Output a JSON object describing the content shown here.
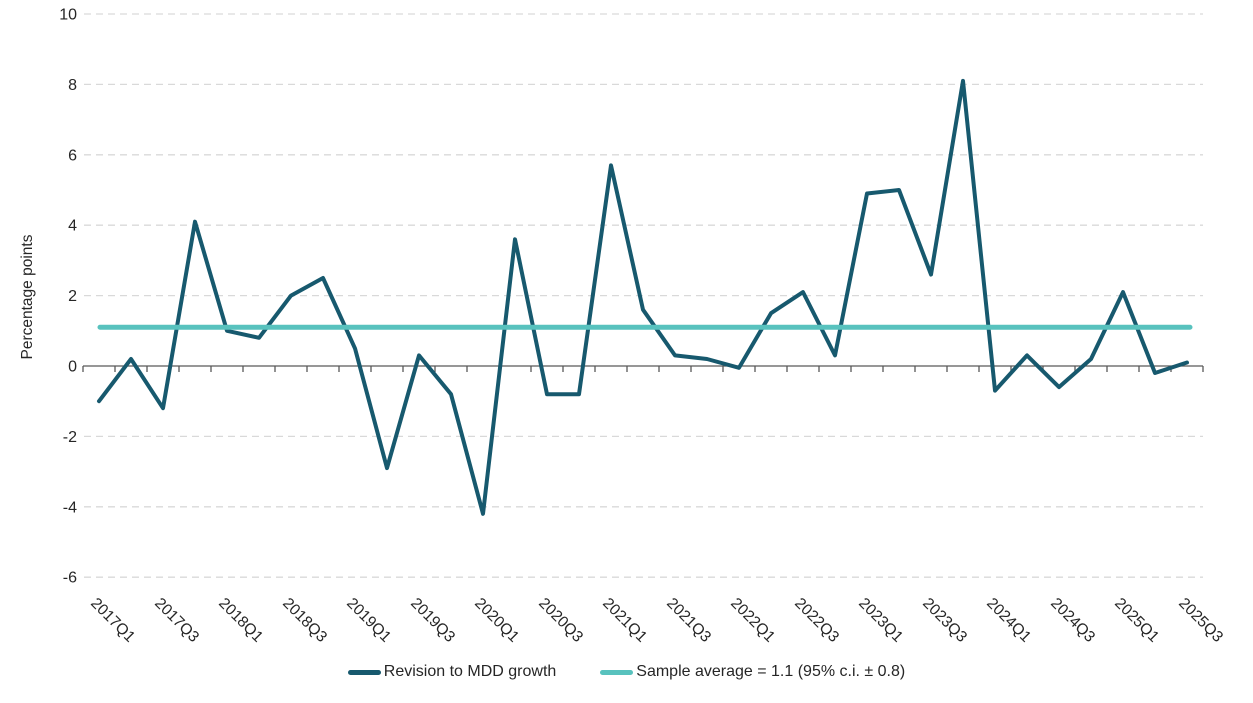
{
  "chart_data": {
    "type": "line",
    "title": "",
    "xlabel": "",
    "ylabel": "Percentage points",
    "ylim": [
      -6,
      10
    ],
    "ytick_step": 2,
    "grid": "horizontal-dashed",
    "legend_position": "bottom-center",
    "categories": [
      "2017Q1",
      "2017Q2",
      "2017Q3",
      "2017Q4",
      "2018Q1",
      "2018Q2",
      "2018Q3",
      "2018Q4",
      "2019Q1",
      "2019Q2",
      "2019Q3",
      "2019Q4",
      "2020Q1",
      "2020Q2",
      "2020Q3",
      "2020Q4",
      "2021Q1",
      "2021Q2",
      "2021Q3",
      "2021Q4",
      "2022Q1",
      "2022Q2",
      "2022Q3",
      "2022Q4",
      "2023Q1",
      "2023Q2",
      "2023Q3",
      "2023Q4",
      "2024Q1",
      "2024Q2",
      "2024Q3",
      "2024Q4",
      "2025Q1",
      "2025Q2",
      "2025Q3"
    ],
    "x_tick_labels": [
      "2017Q1",
      "2017Q3",
      "2018Q1",
      "2018Q3",
      "2019Q1",
      "2019Q3",
      "2020Q1",
      "2020Q3",
      "2021Q1",
      "2021Q3",
      "2022Q1",
      "2022Q3",
      "2023Q1",
      "2023Q3",
      "2024Q1",
      "2024Q3",
      "2025Q1",
      "2025Q3"
    ],
    "y_tick_labels": [
      "10",
      "8",
      "6",
      "4",
      "2",
      "0",
      "-2",
      "-4",
      "-6"
    ],
    "series": [
      {
        "name": "Revision to MDD growth",
        "kind": "data-line",
        "color": "#17596E",
        "values": [
          -1.0,
          0.2,
          -1.2,
          4.1,
          1.0,
          0.8,
          2.0,
          2.5,
          0.5,
          -2.9,
          0.3,
          -0.8,
          -4.2,
          3.6,
          -0.8,
          -0.8,
          5.7,
          1.6,
          0.3,
          0.2,
          -0.05,
          1.5,
          2.1,
          0.3,
          4.9,
          5.0,
          2.6,
          8.1,
          -0.7,
          0.3,
          -0.6,
          0.2,
          2.1,
          -0.2,
          0.1
        ]
      },
      {
        "name": "Sample average = 1.1 (95% c.i. ± 0.8)",
        "kind": "constant-line",
        "color": "#58C2BE",
        "value": 1.1
      }
    ]
  },
  "colors": {
    "background": "#FFFFFF",
    "gridline": "#D9D9D9",
    "axis_line": "#595959",
    "tick_mark": "#595959",
    "text": "#262626",
    "series_line": "#17596E",
    "average_line": "#58C2BE"
  }
}
